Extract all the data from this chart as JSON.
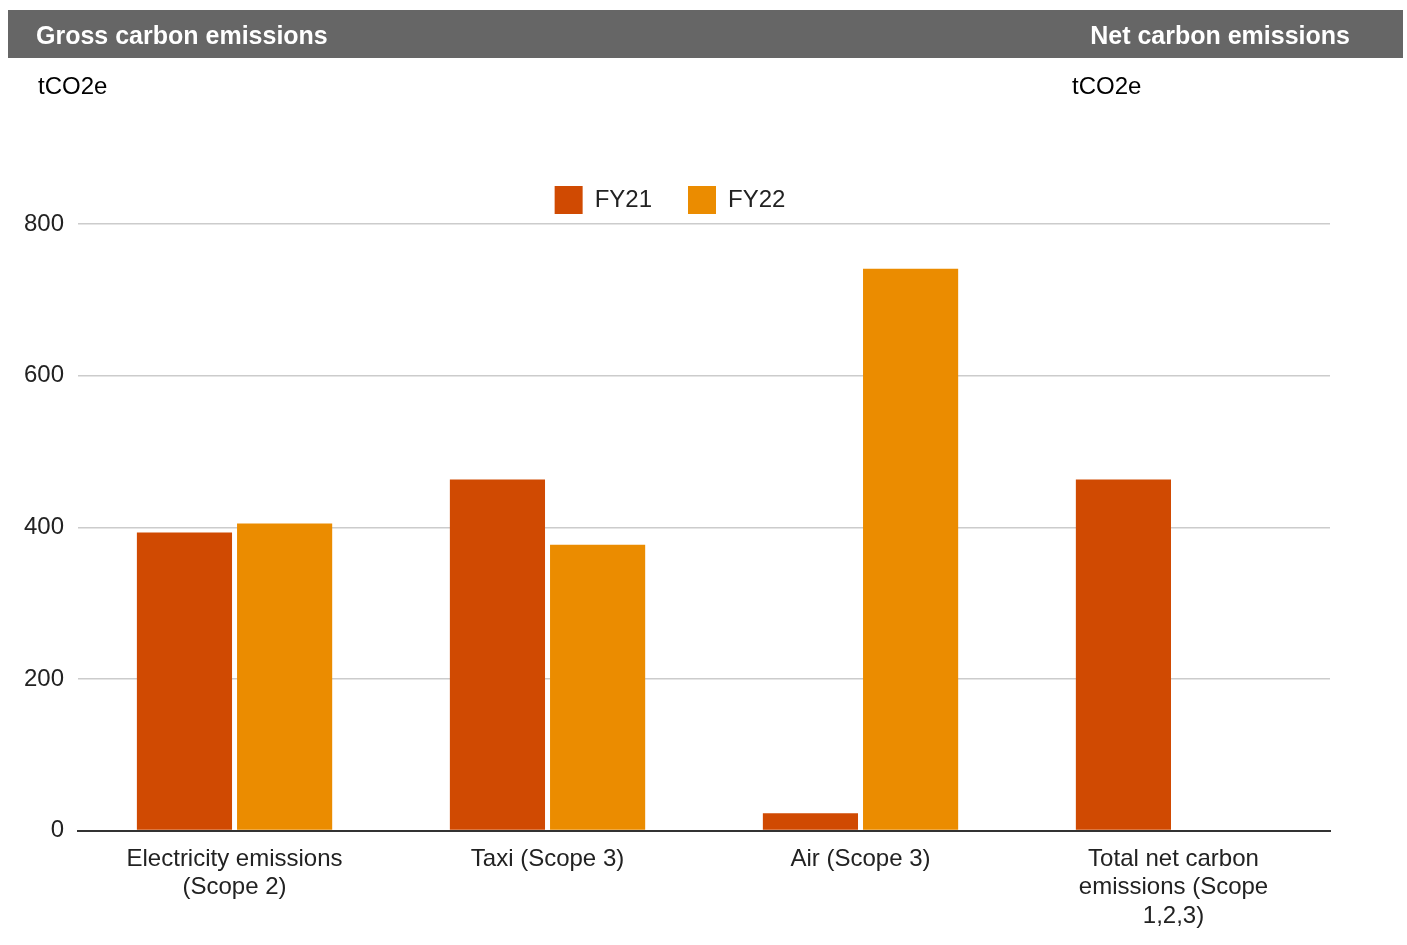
{
  "chart_data": {
    "type": "bar",
    "title": "Gross carbon emissions",
    "ylabel": "tCO2e",
    "annotations": [
      "Net carbon emissions",
      "tCO2e"
    ],
    "categories": [
      "Electricity emissions (Scope 2)",
      "Taxi (Scope 3)",
      "Air (Scope 3)",
      "Total net carbon emissions (Scope 1,2,3)"
    ],
    "series": [
      {
        "name": "FY21",
        "color": "#d04a02",
        "values": [
          393,
          463,
          23,
          463
        ]
      },
      {
        "name": "FY22",
        "color": "#eb8c00",
        "values": [
          405,
          377,
          741,
          null
        ]
      }
    ],
    "ylim": [
      0,
      800
    ],
    "yticks": [
      0,
      200,
      400,
      600,
      800
    ],
    "grid": "y",
    "legend": "top"
  }
}
